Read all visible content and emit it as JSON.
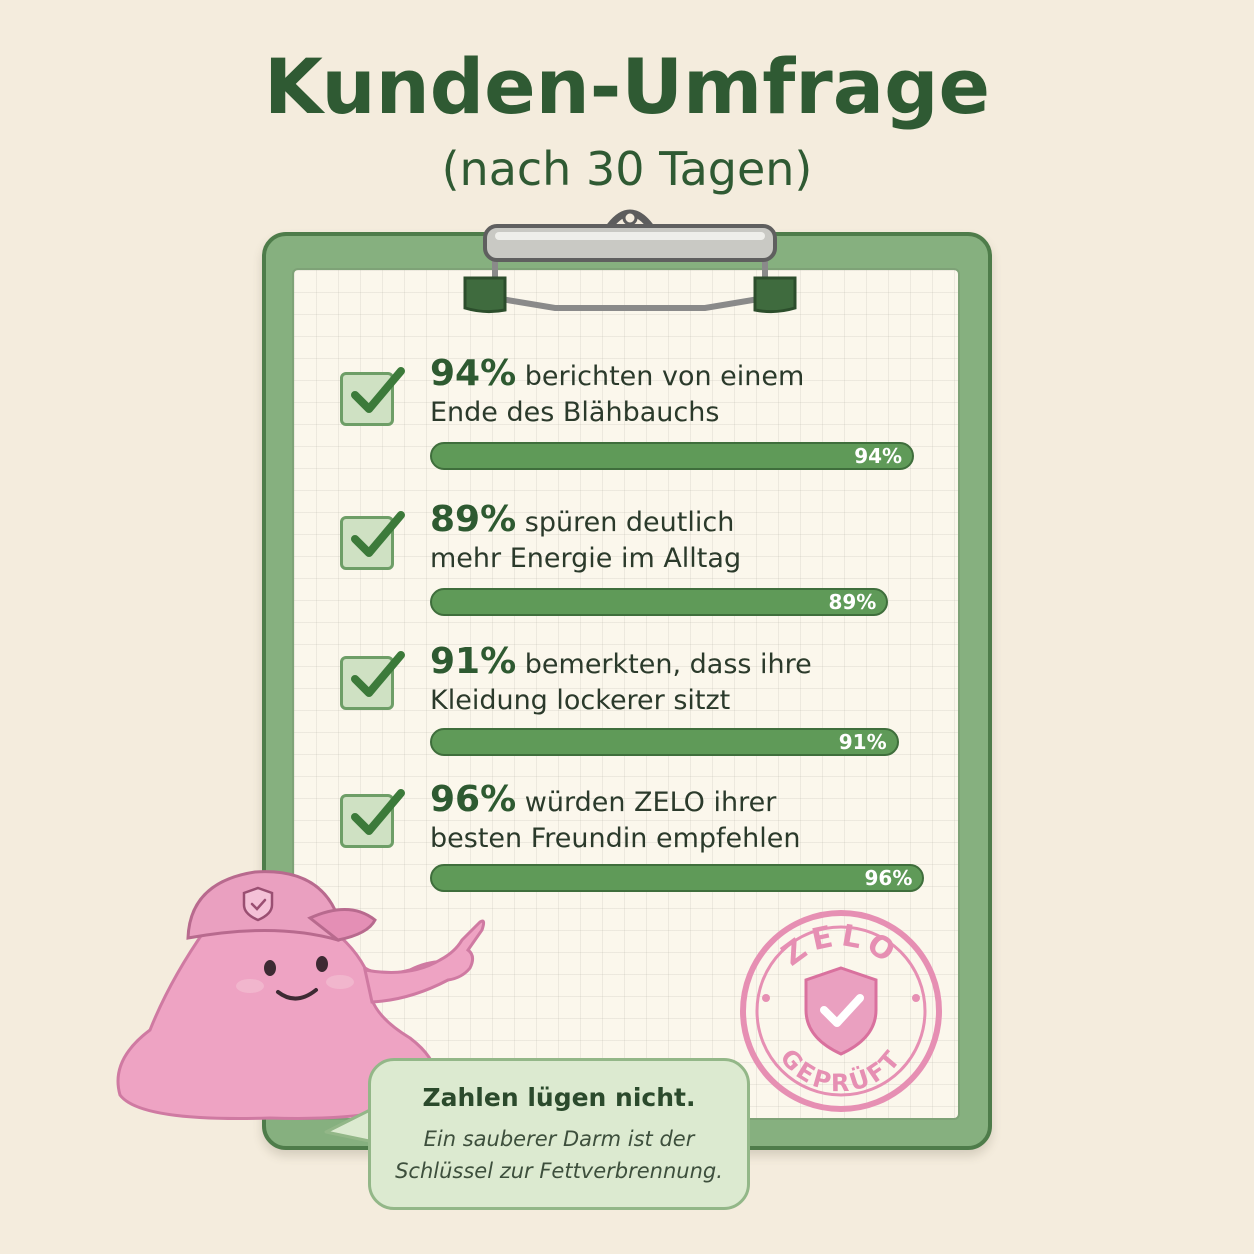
{
  "header": {
    "title": "Kunden-Umfrage",
    "subtitle": "(nach 30 Tagen)"
  },
  "stats": [
    {
      "percent_label": "94%",
      "line1": "berichten von einem",
      "line2": "Ende des Blähbauchs",
      "bar_label": "94%",
      "value": 94
    },
    {
      "percent_label": "89%",
      "line1": "spüren deutlich",
      "line2": "mehr Energie im Alltag",
      "bar_label": "89%",
      "value": 89
    },
    {
      "percent_label": "91%",
      "line1": "bemerkten, dass ihre",
      "line2": "Kleidung lockerer sitzt",
      "bar_label": "91%",
      "value": 91
    },
    {
      "percent_label": "96%",
      "line1": "würden ZELO ihrer",
      "line2": "besten Freundin empfehlen",
      "bar_label": "96%",
      "value": 96
    }
  ],
  "stamp": {
    "top_text": "ZELO",
    "bottom_text": "GEPRÜFT"
  },
  "speech_bubble": {
    "title": "Zahlen lügen nicht.",
    "line1": "Ein sauberer Darm ist der",
    "line2": "Schlüssel zur Fettverbrennung."
  },
  "colors": {
    "background": "#f4ecdd",
    "title_green": "#2f5a33",
    "bar_green": "#5f9a58",
    "board_green": "#86b07f",
    "stamp_pink": "#e68fb3",
    "mascot_pink": "#eea3c3"
  },
  "icons": {
    "check": "checkmark-icon",
    "shield": "shield-check-icon",
    "mascot": "pink-blob-mascot-with-cap"
  }
}
